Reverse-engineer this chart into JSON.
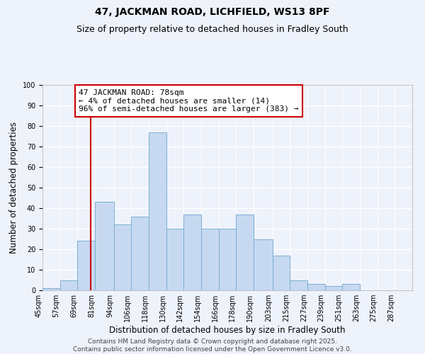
{
  "title": "47, JACKMAN ROAD, LICHFIELD, WS13 8PF",
  "subtitle": "Size of property relative to detached houses in Fradley South",
  "xlabel": "Distribution of detached houses by size in Fradley South",
  "ylabel": "Number of detached properties",
  "bin_labels": [
    "45sqm",
    "57sqm",
    "69sqm",
    "81sqm",
    "94sqm",
    "106sqm",
    "118sqm",
    "130sqm",
    "142sqm",
    "154sqm",
    "166sqm",
    "178sqm",
    "190sqm",
    "203sqm",
    "215sqm",
    "227sqm",
    "239sqm",
    "251sqm",
    "263sqm",
    "275sqm",
    "287sqm"
  ],
  "bar_heights": [
    1,
    5,
    24,
    43,
    32,
    36,
    77,
    30,
    37,
    30,
    30,
    37,
    25,
    17,
    5,
    3,
    2,
    3,
    0,
    0,
    0
  ],
  "bar_color": "#c6d9f1",
  "bar_edge_color": "#7bafd4",
  "property_line_x": 78,
  "bin_edges": [
    45,
    57,
    69,
    81,
    94,
    106,
    118,
    130,
    142,
    154,
    166,
    178,
    190,
    203,
    215,
    227,
    239,
    251,
    263,
    275,
    287,
    299
  ],
  "annotation_text": "47 JACKMAN ROAD: 78sqm\n← 4% of detached houses are smaller (14)\n96% of semi-detached houses are larger (383) →",
  "annotation_box_color": "#ffffff",
  "annotation_box_edge": "#cc0000",
  "vline_color": "#cc0000",
  "ylim": [
    0,
    100
  ],
  "yticks": [
    0,
    10,
    20,
    30,
    40,
    50,
    60,
    70,
    80,
    90,
    100
  ],
  "background_color": "#eef2fb",
  "footer_line1": "Contains HM Land Registry data © Crown copyright and database right 2025.",
  "footer_line2": "Contains public sector information licensed under the Open Government Licence v3.0.",
  "title_fontsize": 10,
  "subtitle_fontsize": 9,
  "axis_label_fontsize": 8.5,
  "tick_fontsize": 7,
  "annotation_fontsize": 8,
  "footer_fontsize": 6.5
}
